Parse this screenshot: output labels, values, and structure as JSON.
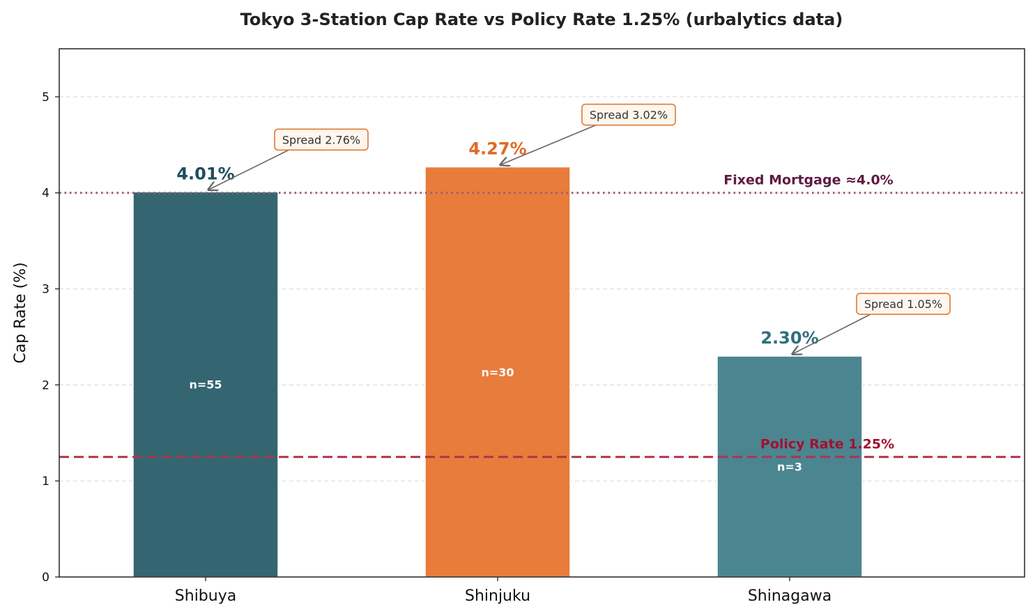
{
  "chart_data": {
    "type": "bar",
    "title": "Tokyo 3-Station Cap Rate vs Policy Rate 1.25% (urbalytics data)",
    "ylabel": "Cap Rate (%)",
    "xlabel": "",
    "ylim": [
      0,
      5.5
    ],
    "yticks": [
      0,
      1,
      2,
      3,
      4,
      5
    ],
    "grid": "y-dashed",
    "categories": [
      "Shibuya",
      "Shinjuku",
      "Shinagawa"
    ],
    "values": [
      4.01,
      4.27,
      2.3
    ],
    "value_labels": [
      "4.01%",
      "4.27%",
      "2.30%"
    ],
    "sample_labels": [
      "n=55",
      "n=30",
      "n=3"
    ],
    "colors": [
      "#336670",
      "#e87c3a",
      "#4b8590"
    ],
    "value_label_colors": [
      "#1d4e5a",
      "#e06a22",
      "#2f6f7c"
    ],
    "spread_labels": [
      "Spread 2.76%",
      "Spread 3.02%",
      "Spread 1.05%"
    ],
    "reference_lines": [
      {
        "name": "Fixed Mortgage ≈4.0%",
        "value": 4.0,
        "style": "dotted",
        "color": "#9a5a78",
        "label_color": "#5e1a44"
      },
      {
        "name": "Policy Rate 1.25%",
        "value": 1.25,
        "style": "dashed",
        "color": "#b0334a",
        "label_color": "#a0122e"
      }
    ]
  }
}
